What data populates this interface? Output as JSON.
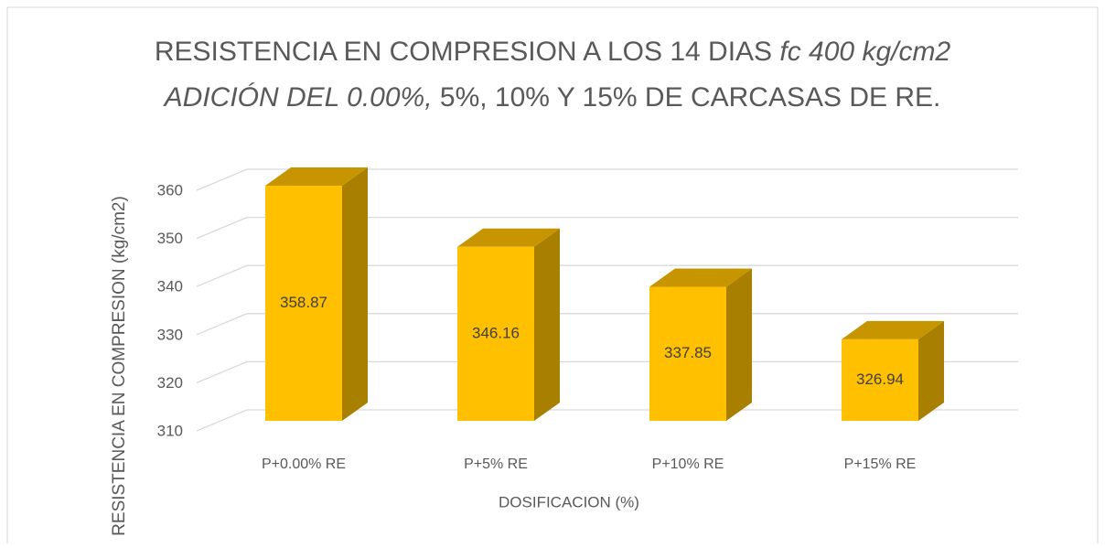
{
  "chart_data": {
    "type": "bar3d",
    "title_lines": [
      [
        {
          "text": "RESISTENCIA EN COMPRESION A LOS 14 DIAS ",
          "italic": false
        },
        {
          "text": "fc 400 kg/cm2",
          "italic": true
        }
      ],
      [
        {
          "text": "ADICIÓN DEL 0.00%,",
          "italic": true
        },
        {
          "text": " 5%, 10% Y 15% DE CARCASAS DE RE.",
          "italic": false
        }
      ]
    ],
    "x_label": "DOSIFICACION (%)",
    "y_label": "RESISTENCIA EN COMPRESION (kg/cm2)",
    "categories": [
      "P+0.00% RE",
      "P+5% RE",
      "P+10% RE",
      "P+15% RE"
    ],
    "values": [
      358.87,
      346.16,
      337.85,
      326.94
    ],
    "color": "#FFC000",
    "ylim": [
      310,
      360
    ],
    "yticks": [
      310,
      320,
      330,
      340,
      350,
      360
    ],
    "grid": true
  }
}
